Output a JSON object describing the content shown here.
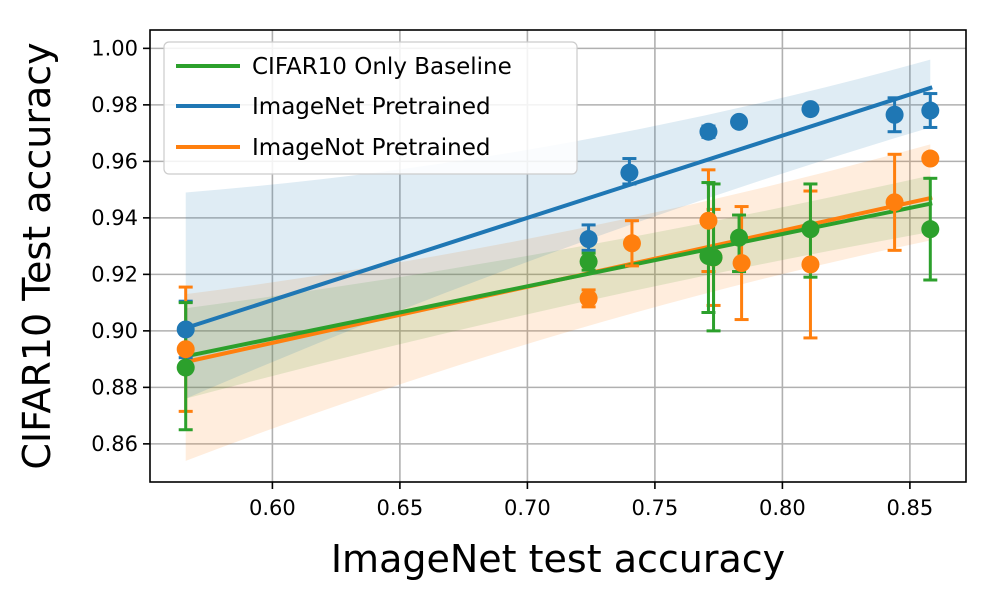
{
  "chart_data": {
    "type": "scatter",
    "title": "",
    "xlabel": "ImageNet test accuracy",
    "ylabel": "CIFAR10 Test accuracy",
    "xlim": [
      0.552,
      0.872
    ],
    "ylim": [
      0.8465,
      1.0065
    ],
    "xticks": [
      0.6,
      0.65,
      0.7,
      0.75,
      0.8,
      0.85
    ],
    "xtick_labels": [
      "0.60",
      "0.65",
      "0.70",
      "0.75",
      "0.80",
      "0.85"
    ],
    "yticks": [
      0.86,
      0.88,
      0.9,
      0.92,
      0.94,
      0.96,
      0.98,
      1.0
    ],
    "ytick_labels": [
      "0.86",
      "0.88",
      "0.90",
      "0.92",
      "0.94",
      "0.96",
      "0.98",
      "1.00"
    ],
    "grid": true,
    "legend_position": "top-left",
    "series": [
      {
        "name": "CIFAR10 Only Baseline",
        "color": "#2ca02c",
        "x": [
          0.566,
          0.724,
          0.771,
          0.773,
          0.783,
          0.811,
          0.858
        ],
        "y": [
          0.887,
          0.9245,
          0.9265,
          0.926,
          0.933,
          0.936,
          0.936
        ],
        "err_low": [
          0.022,
          0.003,
          0.02,
          0.026,
          0.012,
          0.017,
          0.018
        ],
        "err_high": [
          0.023,
          0.003,
          0.026,
          0.026,
          0.008,
          0.016,
          0.018
        ],
        "fit": [
          0.891,
          0.945
        ],
        "band_low": [
          0.876,
          0.935
        ],
        "band_high": [
          0.908,
          0.955
        ],
        "band_opacity": 0.14
      },
      {
        "name": "ImageNet Pretrained",
        "color": "#1f77b4",
        "x": [
          0.566,
          0.724,
          0.74,
          0.771,
          0.783,
          0.811,
          0.844,
          0.858
        ],
        "y": [
          0.9005,
          0.9325,
          0.956,
          0.9705,
          0.974,
          0.9785,
          0.9765,
          0.978
        ],
        "err_low": [
          0.01,
          0.004,
          0.004,
          0.002,
          0.0,
          0.0,
          0.006,
          0.006
        ],
        "err_high": [
          0.01,
          0.005,
          0.005,
          0.002,
          0.0,
          0.0,
          0.006,
          0.006
        ],
        "fit": [
          0.901,
          0.986
        ],
        "band_low": [
          0.876,
          0.972
        ],
        "band_high": [
          0.949,
          0.996
        ],
        "band_opacity": 0.14
      },
      {
        "name": "ImageNot Pretrained",
        "color": "#ff7f0e",
        "x": [
          0.566,
          0.724,
          0.741,
          0.771,
          0.773,
          0.784,
          0.811,
          0.844,
          0.858
        ],
        "y": [
          0.8935,
          0.9115,
          0.931,
          0.939,
          0.926,
          0.924,
          0.9235,
          0.9455,
          0.961
        ],
        "err_low": [
          0.022,
          0.003,
          0.008,
          0.018,
          0.017,
          0.02,
          0.026,
          0.017,
          0.0
        ],
        "err_high": [
          0.022,
          0.003,
          0.008,
          0.018,
          0.017,
          0.02,
          0.026,
          0.017,
          0.0
        ],
        "fit": [
          0.889,
          0.947
        ],
        "band_low": [
          0.854,
          0.932
        ],
        "band_high": [
          0.913,
          0.966
        ],
        "band_opacity": 0.14
      }
    ]
  }
}
